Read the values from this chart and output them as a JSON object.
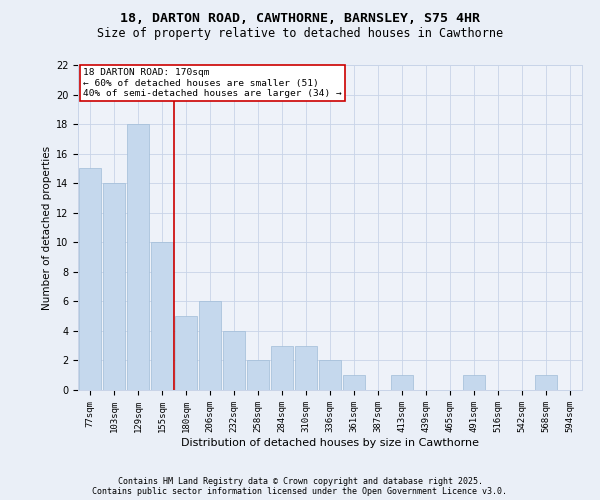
{
  "title": "18, DARTON ROAD, CAWTHORNE, BARNSLEY, S75 4HR",
  "subtitle": "Size of property relative to detached houses in Cawthorne",
  "xlabel": "Distribution of detached houses by size in Cawthorne",
  "ylabel": "Number of detached properties",
  "categories": [
    "77sqm",
    "103sqm",
    "129sqm",
    "155sqm",
    "180sqm",
    "206sqm",
    "232sqm",
    "258sqm",
    "284sqm",
    "310sqm",
    "336sqm",
    "361sqm",
    "387sqm",
    "413sqm",
    "439sqm",
    "465sqm",
    "491sqm",
    "516sqm",
    "542sqm",
    "568sqm",
    "594sqm"
  ],
  "values": [
    15,
    14,
    18,
    10,
    5,
    6,
    4,
    2,
    3,
    3,
    2,
    1,
    0,
    1,
    0,
    0,
    1,
    0,
    0,
    1,
    0
  ],
  "bar_color": "#c5d8ed",
  "bar_edge_color": "#a0bcd8",
  "vline_color": "#cc0000",
  "annotation_text": "18 DARTON ROAD: 170sqm\n← 60% of detached houses are smaller (51)\n40% of semi-detached houses are larger (34) →",
  "annotation_box_color": "#ffffff",
  "annotation_box_edge": "#cc0000",
  "ylim": [
    0,
    22
  ],
  "yticks": [
    0,
    2,
    4,
    6,
    8,
    10,
    12,
    14,
    16,
    18,
    20,
    22
  ],
  "footnote1": "Contains HM Land Registry data © Crown copyright and database right 2025.",
  "footnote2": "Contains public sector information licensed under the Open Government Licence v3.0.",
  "bg_color": "#eaeff7",
  "plot_bg_color": "#eef2f9",
  "grid_color": "#c8d4e8",
  "title_fontsize": 9.5,
  "subtitle_fontsize": 8.5,
  "xlabel_fontsize": 8,
  "ylabel_fontsize": 7.5,
  "tick_fontsize": 6.5,
  "annotation_fontsize": 6.8,
  "footnote_fontsize": 6.0
}
